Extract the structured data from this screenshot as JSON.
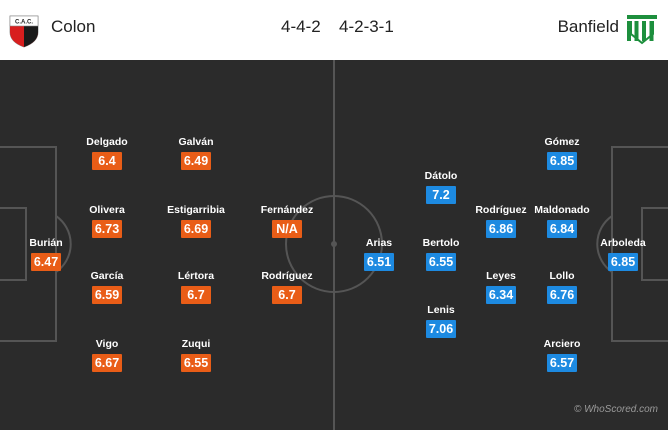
{
  "home": {
    "name": "Colon",
    "formation": "4-4-2",
    "crest_icon": "colon-crest-icon",
    "color": "#e95d17",
    "players": [
      {
        "name": "Burián",
        "rating": "6.47"
      },
      {
        "name": "Delgado",
        "rating": "6.4"
      },
      {
        "name": "Olivera",
        "rating": "6.73"
      },
      {
        "name": "García",
        "rating": "6.59"
      },
      {
        "name": "Vigo",
        "rating": "6.67"
      },
      {
        "name": "Galván",
        "rating": "6.49"
      },
      {
        "name": "Estigarribia",
        "rating": "6.69"
      },
      {
        "name": "Lértora",
        "rating": "6.7"
      },
      {
        "name": "Zuqui",
        "rating": "6.55"
      },
      {
        "name": "Fernández",
        "rating": "N/A"
      },
      {
        "name": "Rodríguez",
        "rating": "6.7"
      }
    ]
  },
  "away": {
    "name": "Banfield",
    "formation": "4-2-3-1",
    "crest_icon": "banfield-crest-icon",
    "color": "#1d8ae1",
    "players": [
      {
        "name": "Arboleda",
        "rating": "6.85"
      },
      {
        "name": "Gómez",
        "rating": "6.85"
      },
      {
        "name": "Maldonado",
        "rating": "6.84"
      },
      {
        "name": "Lollo",
        "rating": "6.76"
      },
      {
        "name": "Arciero",
        "rating": "6.57"
      },
      {
        "name": "Rodríguez",
        "rating": "6.86"
      },
      {
        "name": "Leyes",
        "rating": "6.34"
      },
      {
        "name": "Dátolo",
        "rating": "7.2"
      },
      {
        "name": "Bertolo",
        "rating": "6.55"
      },
      {
        "name": "Lenis",
        "rating": "7.06"
      },
      {
        "name": "Arias",
        "rating": "6.51"
      }
    ]
  },
  "watermark": "© WhoScored.com"
}
